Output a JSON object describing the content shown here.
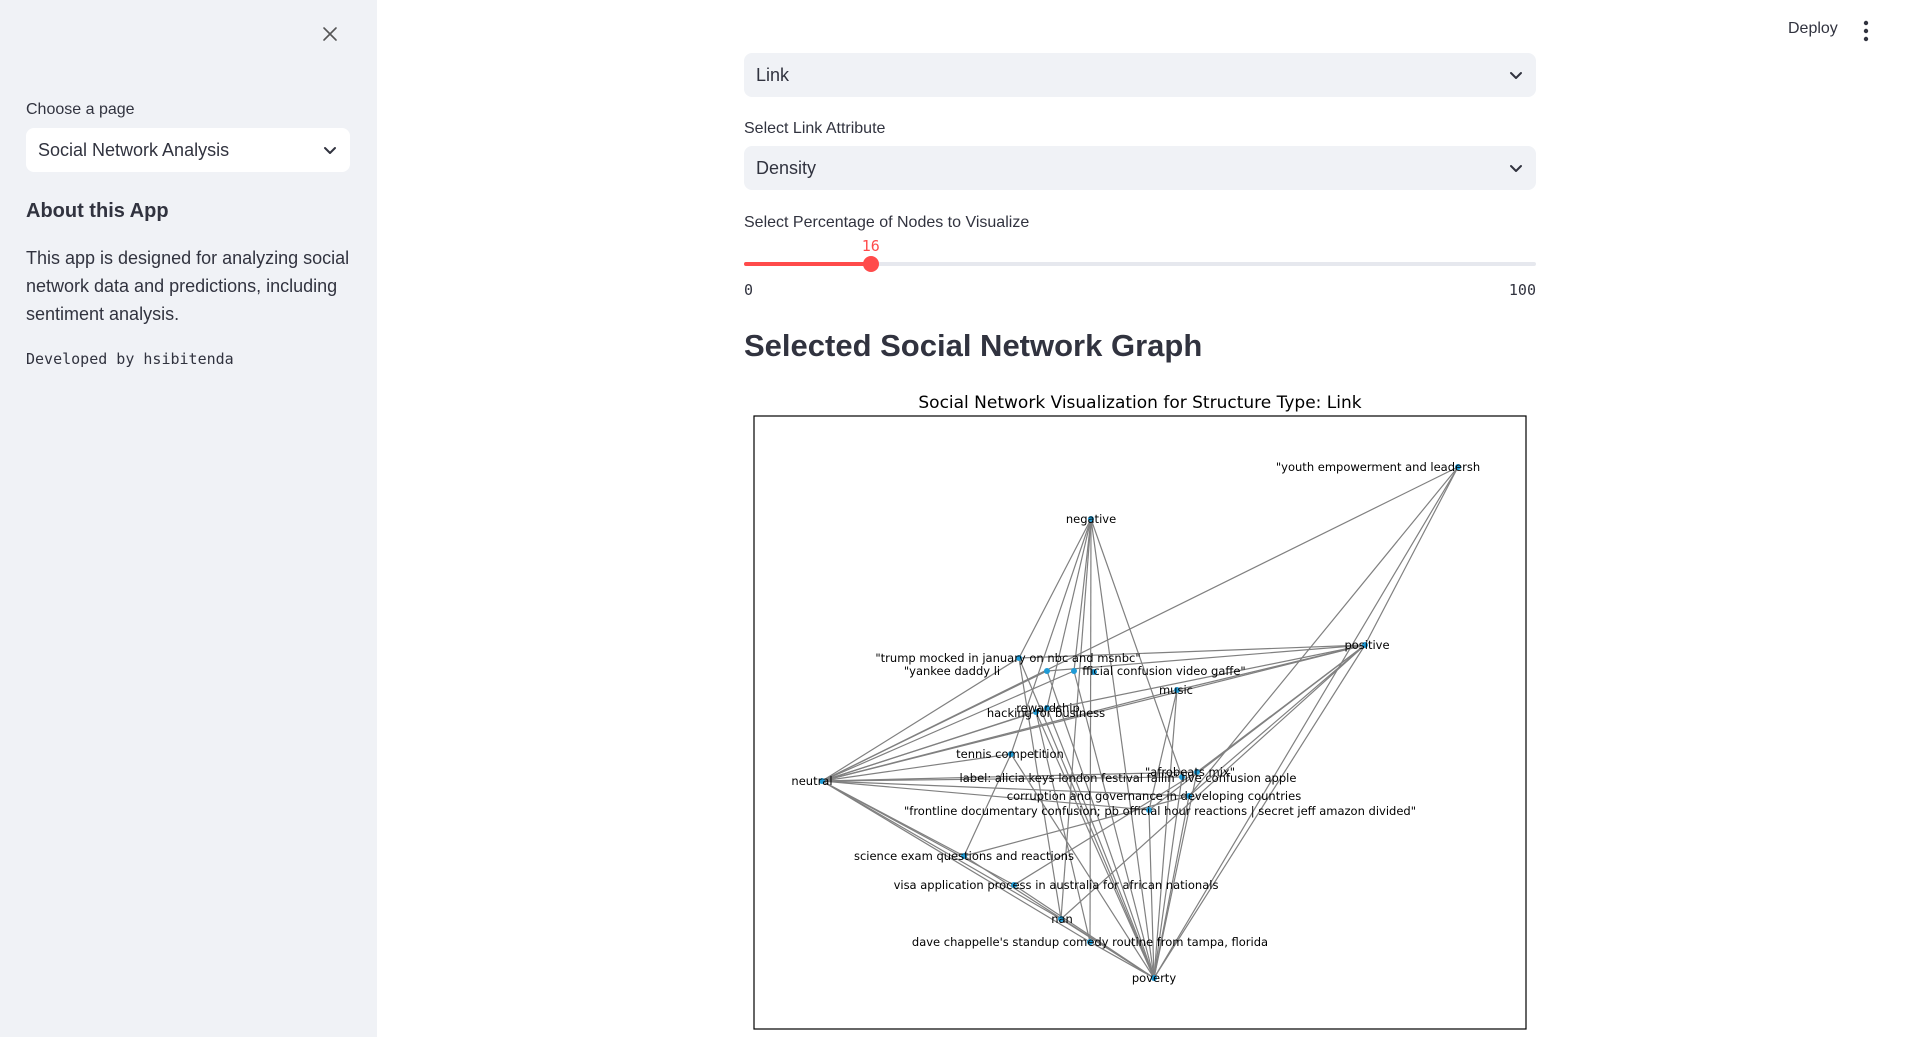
{
  "sidebar": {
    "choose_page_label": "Choose a page",
    "page_select_value": "Social Network Analysis",
    "about_title": "About this App",
    "about_text": "This app is designed for analyzing social network data and predictions, including sentiment analysis.",
    "developer_text": "Developed by hsibitenda"
  },
  "topbar": {
    "deploy_label": "Deploy",
    "menu_icon": "more-vertical-icon"
  },
  "main": {
    "structure_select_value": "Link",
    "link_attribute_label": "Select Link Attribute",
    "link_attribute_value": "Density",
    "percentage_label": "Select Percentage of Nodes to Visualize",
    "slider": {
      "value": 16,
      "min": 0,
      "max": 100,
      "min_label": "0",
      "max_label": "100",
      "value_label": "16"
    },
    "graph_heading": "Selected Social Network Graph"
  },
  "colors": {
    "accent": "#ff4b4b",
    "node": "#1f9bd6",
    "edge": "#808080"
  },
  "chart_data": {
    "type": "network",
    "title": "Social Network Visualization for Structure Type: Link",
    "nodes": [
      {
        "id": "youth",
        "label": "\"youth empowerment and leadersh"
      },
      {
        "id": "negative",
        "label": "negative"
      },
      {
        "id": "positive",
        "label": "positive"
      },
      {
        "id": "trump",
        "label": "\"trump mocked in january on nbc and msnbc\""
      },
      {
        "id": "yankee",
        "label": "\"yankee daddy li"
      },
      {
        "id": "blank1",
        "label": ""
      },
      {
        "id": "confusion",
        "label": "fficial confusion video gaffe\""
      },
      {
        "id": "music",
        "label": "music"
      },
      {
        "id": "rewardship",
        "label": "rewardship"
      },
      {
        "id": "hacking",
        "label": "hacking for business"
      },
      {
        "id": "tennis",
        "label": "tennis competition"
      },
      {
        "id": "afrobeats",
        "label": "\"afrobeats mix\""
      },
      {
        "id": "neutral",
        "label": "neutral"
      },
      {
        "id": "alicia",
        "label": "label: alicia keys london festival fallin' live confusion apple"
      },
      {
        "id": "corruption",
        "label": "corruption and governance in developing countries"
      },
      {
        "id": "frontline",
        "label": "\"frontline documentary confusion; pb official hour reactions | secret jeff amazon divided\""
      },
      {
        "id": "science",
        "label": "science exam questions and reactions"
      },
      {
        "id": "visa",
        "label": "visa application process in australia for african nationals"
      },
      {
        "id": "nan",
        "label": "nan"
      },
      {
        "id": "dave",
        "label": "dave chappelle's standup comedy routine from tampa, florida"
      },
      {
        "id": "poverty",
        "label": "poverty"
      }
    ],
    "edges": [
      [
        "youth",
        "positive"
      ],
      [
        "youth",
        "poverty"
      ],
      [
        "youth",
        "neutral"
      ],
      [
        "youth",
        "corruption"
      ],
      [
        "negative",
        "trump"
      ],
      [
        "negative",
        "rewardship"
      ],
      [
        "negative",
        "nan"
      ],
      [
        "negative",
        "poverty"
      ],
      [
        "negative",
        "alicia"
      ],
      [
        "negative",
        "tennis"
      ],
      [
        "negative",
        "dave"
      ],
      [
        "negative",
        "blank1"
      ],
      [
        "positive",
        "neutral"
      ],
      [
        "positive",
        "trump"
      ],
      [
        "positive",
        "yankee"
      ],
      [
        "positive",
        "music"
      ],
      [
        "positive",
        "poverty"
      ],
      [
        "positive",
        "hacking"
      ],
      [
        "positive",
        "afrobeats"
      ],
      [
        "positive",
        "frontline"
      ],
      [
        "positive",
        "nan"
      ],
      [
        "positive",
        "corruption"
      ],
      [
        "neutral",
        "trump"
      ],
      [
        "neutral",
        "yankee"
      ],
      [
        "neutral",
        "rewardship"
      ],
      [
        "neutral",
        "hacking"
      ],
      [
        "neutral",
        "tennis"
      ],
      [
        "neutral",
        "alicia"
      ],
      [
        "neutral",
        "corruption"
      ],
      [
        "neutral",
        "frontline"
      ],
      [
        "neutral",
        "science"
      ],
      [
        "neutral",
        "visa"
      ],
      [
        "neutral",
        "nan"
      ],
      [
        "neutral",
        "afrobeats"
      ],
      [
        "neutral",
        "music"
      ],
      [
        "neutral",
        "blank1"
      ],
      [
        "neutral",
        "dave"
      ],
      [
        "poverty",
        "trump"
      ],
      [
        "poverty",
        "yankee"
      ],
      [
        "poverty",
        "rewardship"
      ],
      [
        "poverty",
        "tennis"
      ],
      [
        "poverty",
        "science"
      ],
      [
        "poverty",
        "visa"
      ],
      [
        "poverty",
        "nan"
      ],
      [
        "poverty",
        "dave"
      ],
      [
        "poverty",
        "afrobeats"
      ],
      [
        "poverty",
        "music"
      ],
      [
        "poverty",
        "corruption"
      ],
      [
        "poverty",
        "hacking"
      ],
      [
        "poverty",
        "blank1"
      ],
      [
        "poverty",
        "alicia"
      ],
      [
        "poverty",
        "frontline"
      ],
      [
        "science",
        "corruption"
      ],
      [
        "visa",
        "afrobeats"
      ],
      [
        "tennis",
        "science"
      ],
      [
        "trump",
        "nan"
      ],
      [
        "hacking",
        "dave"
      ],
      [
        "music",
        "frontline"
      ]
    ]
  }
}
